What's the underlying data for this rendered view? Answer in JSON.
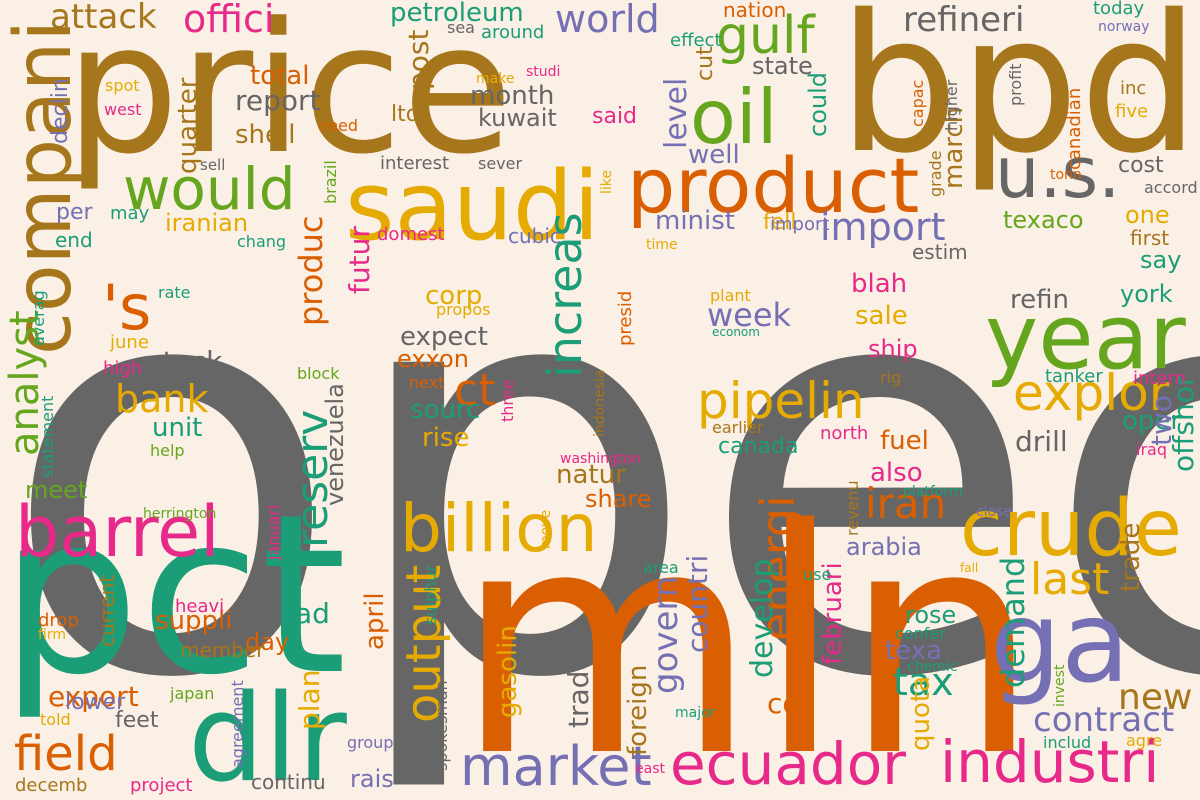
{
  "background": "#faf0e6",
  "words": [
    {
      "text": "opec",
      "color": "#666666"
    },
    {
      "text": "price",
      "color": "#a6761d"
    },
    {
      "text": "bpd",
      "color": "#a6761d"
    },
    {
      "text": "mln",
      "color": "#d95f02"
    },
    {
      "text": "pct",
      "color": "#1b9e77"
    },
    {
      "text": "saudi",
      "color": "#e6ab02"
    },
    {
      "text": "product",
      "color": "#d95f02"
    },
    {
      "text": "year",
      "color": "#66a61e"
    },
    {
      "text": "would",
      "color": "#66a61e"
    },
    {
      "text": "oil",
      "color": "#66a61e"
    },
    {
      "text": "compani",
      "color": "#a6761d"
    },
    {
      "text": "u.s.",
      "color": "#666666"
    },
    {
      "text": "gulf",
      "color": "#66a61e"
    },
    {
      "text": "ga",
      "color": "#7570b3"
    },
    {
      "text": "barrel",
      "color": "#e7298a"
    },
    {
      "text": "dlr",
      "color": "#1b9e77"
    },
    {
      "text": "billion",
      "color": "#e6ab02"
    },
    {
      "text": "crude",
      "color": "#e6ab02"
    },
    {
      "text": "ecuador",
      "color": "#e7298a"
    },
    {
      "text": "industri",
      "color": "#e7298a"
    },
    {
      "text": "market",
      "color": "#7570b3"
    },
    {
      "text": "pipelin",
      "color": "#e6ab02"
    },
    {
      "text": "explor",
      "color": "#e6ab02"
    },
    {
      "text": "increas",
      "color": "#1b9e77"
    },
    {
      "text": "energi",
      "color": "#d95f02"
    },
    {
      "text": "output",
      "color": "#e6ab02"
    },
    {
      "text": "reserv",
      "color": "#1b9e77"
    },
    {
      "text": "field",
      "color": "#d95f02"
    },
    {
      "text": "analyst",
      "color": "#66a61e"
    },
    {
      "text": "refineri",
      "color": "#666666"
    },
    {
      "text": "last",
      "color": "#e6ab02"
    },
    {
      "text": "import",
      "color": "#7570b3"
    },
    {
      "text": "iran",
      "color": "#d95f02"
    },
    {
      "text": "offici",
      "color": "#e7298a"
    },
    {
      "text": "attack",
      "color": "#a6761d"
    },
    {
      "text": "world",
      "color": "#7570b3"
    },
    {
      "text": "petroleum",
      "color": "#1b9e77"
    },
    {
      "text": "'s",
      "color": "#d95f02"
    },
    {
      "text": "bank",
      "color": "#e6ab02"
    },
    {
      "text": "stock",
      "color": "#666666"
    },
    {
      "text": "produc",
      "color": "#d95f02"
    },
    {
      "text": "contract",
      "color": "#7570b3"
    },
    {
      "text": "demand",
      "color": "#1b9e77"
    },
    {
      "text": "tax",
      "color": "#1b9e77"
    },
    {
      "text": "govern",
      "color": "#7570b3"
    },
    {
      "text": "export",
      "color": "#d95f02"
    },
    {
      "text": "new",
      "color": "#a6761d"
    },
    {
      "text": "report",
      "color": "#666666"
    },
    {
      "text": "total",
      "color": "#d95f02"
    },
    {
      "text": "shell",
      "color": "#a6761d"
    },
    {
      "text": "month",
      "color": "#666666"
    },
    {
      "text": "kuwait",
      "color": "#666666"
    },
    {
      "text": "post",
      "color": "#a6761d"
    },
    {
      "text": "ltd",
      "color": "#a6761d"
    },
    {
      "text": "level",
      "color": "#7570b3"
    },
    {
      "text": "well",
      "color": "#7570b3"
    },
    {
      "text": "cut",
      "color": "#a6761d"
    },
    {
      "text": "state",
      "color": "#666666"
    },
    {
      "text": "could",
      "color": "#1b9e77"
    },
    {
      "text": "march",
      "color": "#a6761d"
    },
    {
      "text": "cost",
      "color": "#666666"
    },
    {
      "text": "one",
      "color": "#e6ab02"
    },
    {
      "text": "say",
      "color": "#1b9e77"
    },
    {
      "text": "york",
      "color": "#1b9e77"
    },
    {
      "text": "texaco",
      "color": "#66a61e"
    },
    {
      "text": "minist",
      "color": "#7570b3"
    },
    {
      "text": "fell",
      "color": "#e6ab02"
    },
    {
      "text": "quarter",
      "color": "#a6761d"
    },
    {
      "text": "iranian",
      "color": "#e6ab02"
    },
    {
      "text": "futur",
      "color": "#e7298a"
    },
    {
      "text": "week",
      "color": "#7570b3"
    },
    {
      "text": "sale",
      "color": "#e6ab02"
    },
    {
      "text": "blah",
      "color": "#e7298a"
    },
    {
      "text": "ship",
      "color": "#e7298a"
    },
    {
      "text": "refin",
      "color": "#666666"
    },
    {
      "text": "oper",
      "color": "#1b9e77"
    },
    {
      "text": "drill",
      "color": "#666666"
    },
    {
      "text": "fuel",
      "color": "#d95f02"
    },
    {
      "text": "also",
      "color": "#e7298a"
    },
    {
      "text": "arabia",
      "color": "#7570b3"
    },
    {
      "text": "ct",
      "color": "#d95f02"
    },
    {
      "text": "corp",
      "color": "#e6ab02"
    },
    {
      "text": "expect",
      "color": "#666666"
    },
    {
      "text": "exxon",
      "color": "#d95f02"
    },
    {
      "text": "sourc",
      "color": "#1b9e77"
    },
    {
      "text": "rise",
      "color": "#e6ab02"
    },
    {
      "text": "unit",
      "color": "#1b9e77"
    },
    {
      "text": "venezuela",
      "color": "#666666"
    },
    {
      "text": "natur",
      "color": "#a6761d"
    },
    {
      "text": "share",
      "color": "#d95f02"
    },
    {
      "text": "meet",
      "color": "#66a61e"
    },
    {
      "text": "suppli",
      "color": "#d95f02"
    },
    {
      "text": "day",
      "color": "#d95f02"
    },
    {
      "text": "ad",
      "color": "#1b9e77"
    },
    {
      "text": "plan",
      "color": "#e6ab02"
    },
    {
      "text": "april",
      "color": "#d95f02"
    },
    {
      "text": "rais",
      "color": "#7570b3"
    },
    {
      "text": "member",
      "color": "#a6761d"
    },
    {
      "text": "feet",
      "color": "#666666"
    },
    {
      "text": "continu",
      "color": "#666666"
    },
    {
      "text": "countri",
      "color": "#7570b3"
    },
    {
      "text": "develop",
      "color": "#1b9e77"
    },
    {
      "text": "februari",
      "color": "#e7298a"
    },
    {
      "text": "co",
      "color": "#d95f02"
    },
    {
      "text": "texa",
      "color": "#7570b3"
    },
    {
      "text": "quota",
      "color": "#e6ab02"
    },
    {
      "text": "rose",
      "color": "#1b9e77"
    },
    {
      "text": "gasolin",
      "color": "#e6ab02"
    },
    {
      "text": "trader",
      "color": "#666666"
    },
    {
      "text": "foreign",
      "color": "#a6761d"
    },
    {
      "text": "canada",
      "color": "#1b9e77"
    },
    {
      "text": "two",
      "color": "#7570b3"
    },
    {
      "text": "offshor",
      "color": "#1b9e77"
    },
    {
      "text": "trade",
      "color": "#a6761d"
    },
    {
      "text": "lower",
      "color": "#7570b3"
    },
    {
      "text": "current",
      "color": "#a6761d"
    },
    {
      "text": "per",
      "color": "#7570b3"
    },
    {
      "text": "may",
      "color": "#1b9e77"
    },
    {
      "text": "end",
      "color": "#1b9e77"
    },
    {
      "text": "canadian",
      "color": "#d95f02"
    },
    {
      "text": "today",
      "color": "#1b9e77"
    },
    {
      "text": "nation",
      "color": "#d95f02"
    },
    {
      "text": "effect",
      "color": "#1b9e77"
    },
    {
      "text": "inc",
      "color": "#a6761d"
    },
    {
      "text": "five",
      "color": "#e6ab02"
    },
    {
      "text": "said",
      "color": "#e7298a"
    },
    {
      "text": "need",
      "color": "#d95f02"
    },
    {
      "text": "import",
      "color": "#7570b3"
    },
    {
      "text": "estim",
      "color": "#666666"
    },
    {
      "text": "first",
      "color": "#a6761d"
    },
    {
      "text": "accord",
      "color": "#666666"
    },
    {
      "text": "cubic",
      "color": "#7570b3"
    },
    {
      "text": "chang",
      "color": "#1b9e77"
    },
    {
      "text": "domest",
      "color": "#e7298a"
    },
    {
      "text": "interest",
      "color": "#666666"
    },
    {
      "text": "sever",
      "color": "#666666"
    },
    {
      "text": "sell",
      "color": "#666666"
    },
    {
      "text": "spot",
      "color": "#e6ab02"
    },
    {
      "text": "west",
      "color": "#e7298a"
    },
    {
      "text": "declin",
      "color": "#7570b3"
    },
    {
      "text": "sea",
      "color": "#666666"
    },
    {
      "text": "around",
      "color": "#1b9e77"
    },
    {
      "text": "make",
      "color": "#e6ab02"
    },
    {
      "text": "studi",
      "color": "#e7298a"
    },
    {
      "text": "capac",
      "color": "#d95f02"
    },
    {
      "text": "higher",
      "color": "#666666"
    },
    {
      "text": "profit",
      "color": "#666666"
    },
    {
      "text": "norway",
      "color": "#7570b3"
    },
    {
      "text": "tonn",
      "color": "#d95f02"
    },
    {
      "text": "grade",
      "color": "#a6761d"
    },
    {
      "text": "brazil",
      "color": "#66a61e"
    },
    {
      "text": "like",
      "color": "#e6ab02"
    },
    {
      "text": "time",
      "color": "#e6ab02"
    },
    {
      "text": "rate",
      "color": "#1b9e77"
    },
    {
      "text": "averag",
      "color": "#1b9e77"
    },
    {
      "text": "june",
      "color": "#e6ab02"
    },
    {
      "text": "high",
      "color": "#e7298a"
    },
    {
      "text": "propos",
      "color": "#e6ab02"
    },
    {
      "text": "presid",
      "color": "#d95f02"
    },
    {
      "text": "plant",
      "color": "#e6ab02"
    },
    {
      "text": "econom",
      "color": "#1b9e77"
    },
    {
      "text": "indonesia",
      "color": "#a6761d"
    },
    {
      "text": "next",
      "color": "#d95f02"
    },
    {
      "text": "three",
      "color": "#e7298a"
    },
    {
      "text": "block",
      "color": "#66a61e"
    },
    {
      "text": "statement",
      "color": "#1b9e77"
    },
    {
      "text": "help",
      "color": "#66a61e"
    },
    {
      "text": "rig",
      "color": "#a6761d"
    },
    {
      "text": "tanker",
      "color": "#1b9e77"
    },
    {
      "text": "intern",
      "color": "#e7298a"
    },
    {
      "text": "iraq",
      "color": "#e7298a"
    },
    {
      "text": "earlier",
      "color": "#a6761d"
    },
    {
      "text": "north",
      "color": "#e7298a"
    },
    {
      "text": "washington",
      "color": "#e7298a"
    },
    {
      "text": "revenu",
      "color": "#a6761d"
    },
    {
      "text": "platform",
      "color": "#1b9e77"
    },
    {
      "text": "close",
      "color": "#7570b3"
    },
    {
      "text": "herrington",
      "color": "#66a61e"
    },
    {
      "text": "januari",
      "color": "#e7298a"
    },
    {
      "text": "move",
      "color": "#e6ab02"
    },
    {
      "text": "area",
      "color": "#1b9e77"
    },
    {
      "text": "use",
      "color": "#1b9e77"
    },
    {
      "text": "fall",
      "color": "#e6ab02"
    },
    {
      "text": "sulphur",
      "color": "#1b9e77"
    },
    {
      "text": "drop",
      "color": "#d95f02"
    },
    {
      "text": "firm",
      "color": "#e6ab02"
    },
    {
      "text": "heavi",
      "color": "#e7298a"
    },
    {
      "text": "confer",
      "color": "#1b9e77"
    },
    {
      "text": "chemic",
      "color": "#1b9e77"
    },
    {
      "text": "invest",
      "color": "#66a61e"
    },
    {
      "text": "japan",
      "color": "#66a61e"
    },
    {
      "text": "agreement",
      "color": "#7570b3"
    },
    {
      "text": "spokesman",
      "color": "#666666"
    },
    {
      "text": "major",
      "color": "#1b9e77"
    },
    {
      "text": "told",
      "color": "#e6ab02"
    },
    {
      "text": "group",
      "color": "#7570b3"
    },
    {
      "text": "includ",
      "color": "#1b9e77"
    },
    {
      "text": "agre",
      "color": "#e6ab02"
    },
    {
      "text": "east",
      "color": "#e7298a"
    },
    {
      "text": "project",
      "color": "#e7298a"
    },
    {
      "text": "decemb",
      "color": "#a6761d"
    }
  ]
}
